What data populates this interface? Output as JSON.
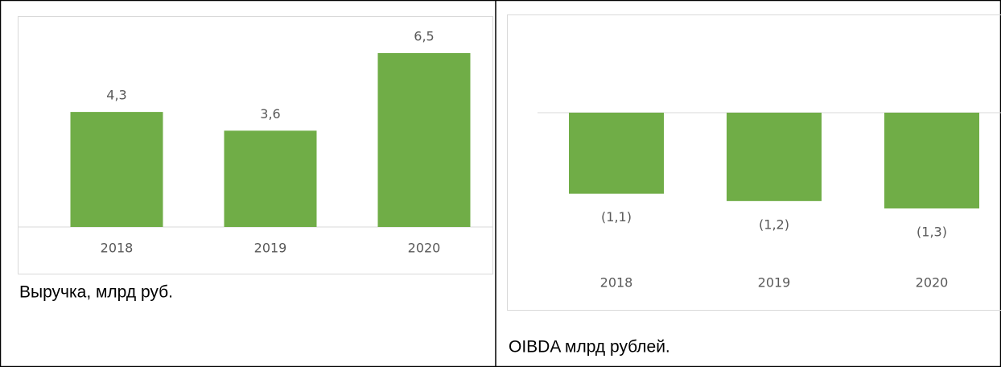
{
  "chart_data": [
    {
      "type": "bar",
      "title": "Выручка, млрд руб.",
      "categories": [
        "2018",
        "2019",
        "2020"
      ],
      "values": [
        4.3,
        3.6,
        6.5
      ],
      "value_labels": [
        "4,3",
        "3,6",
        "6,5"
      ],
      "color": "#70ad47"
    },
    {
      "type": "bar",
      "title": "OIBDA млрд рублей.",
      "categories": [
        "2018",
        "2019",
        "2020"
      ],
      "values": [
        -1.1,
        -1.2,
        -1.3
      ],
      "value_labels": [
        "(1,1)",
        "(1,2)",
        "(1,3)"
      ],
      "color": "#70ad47"
    }
  ]
}
